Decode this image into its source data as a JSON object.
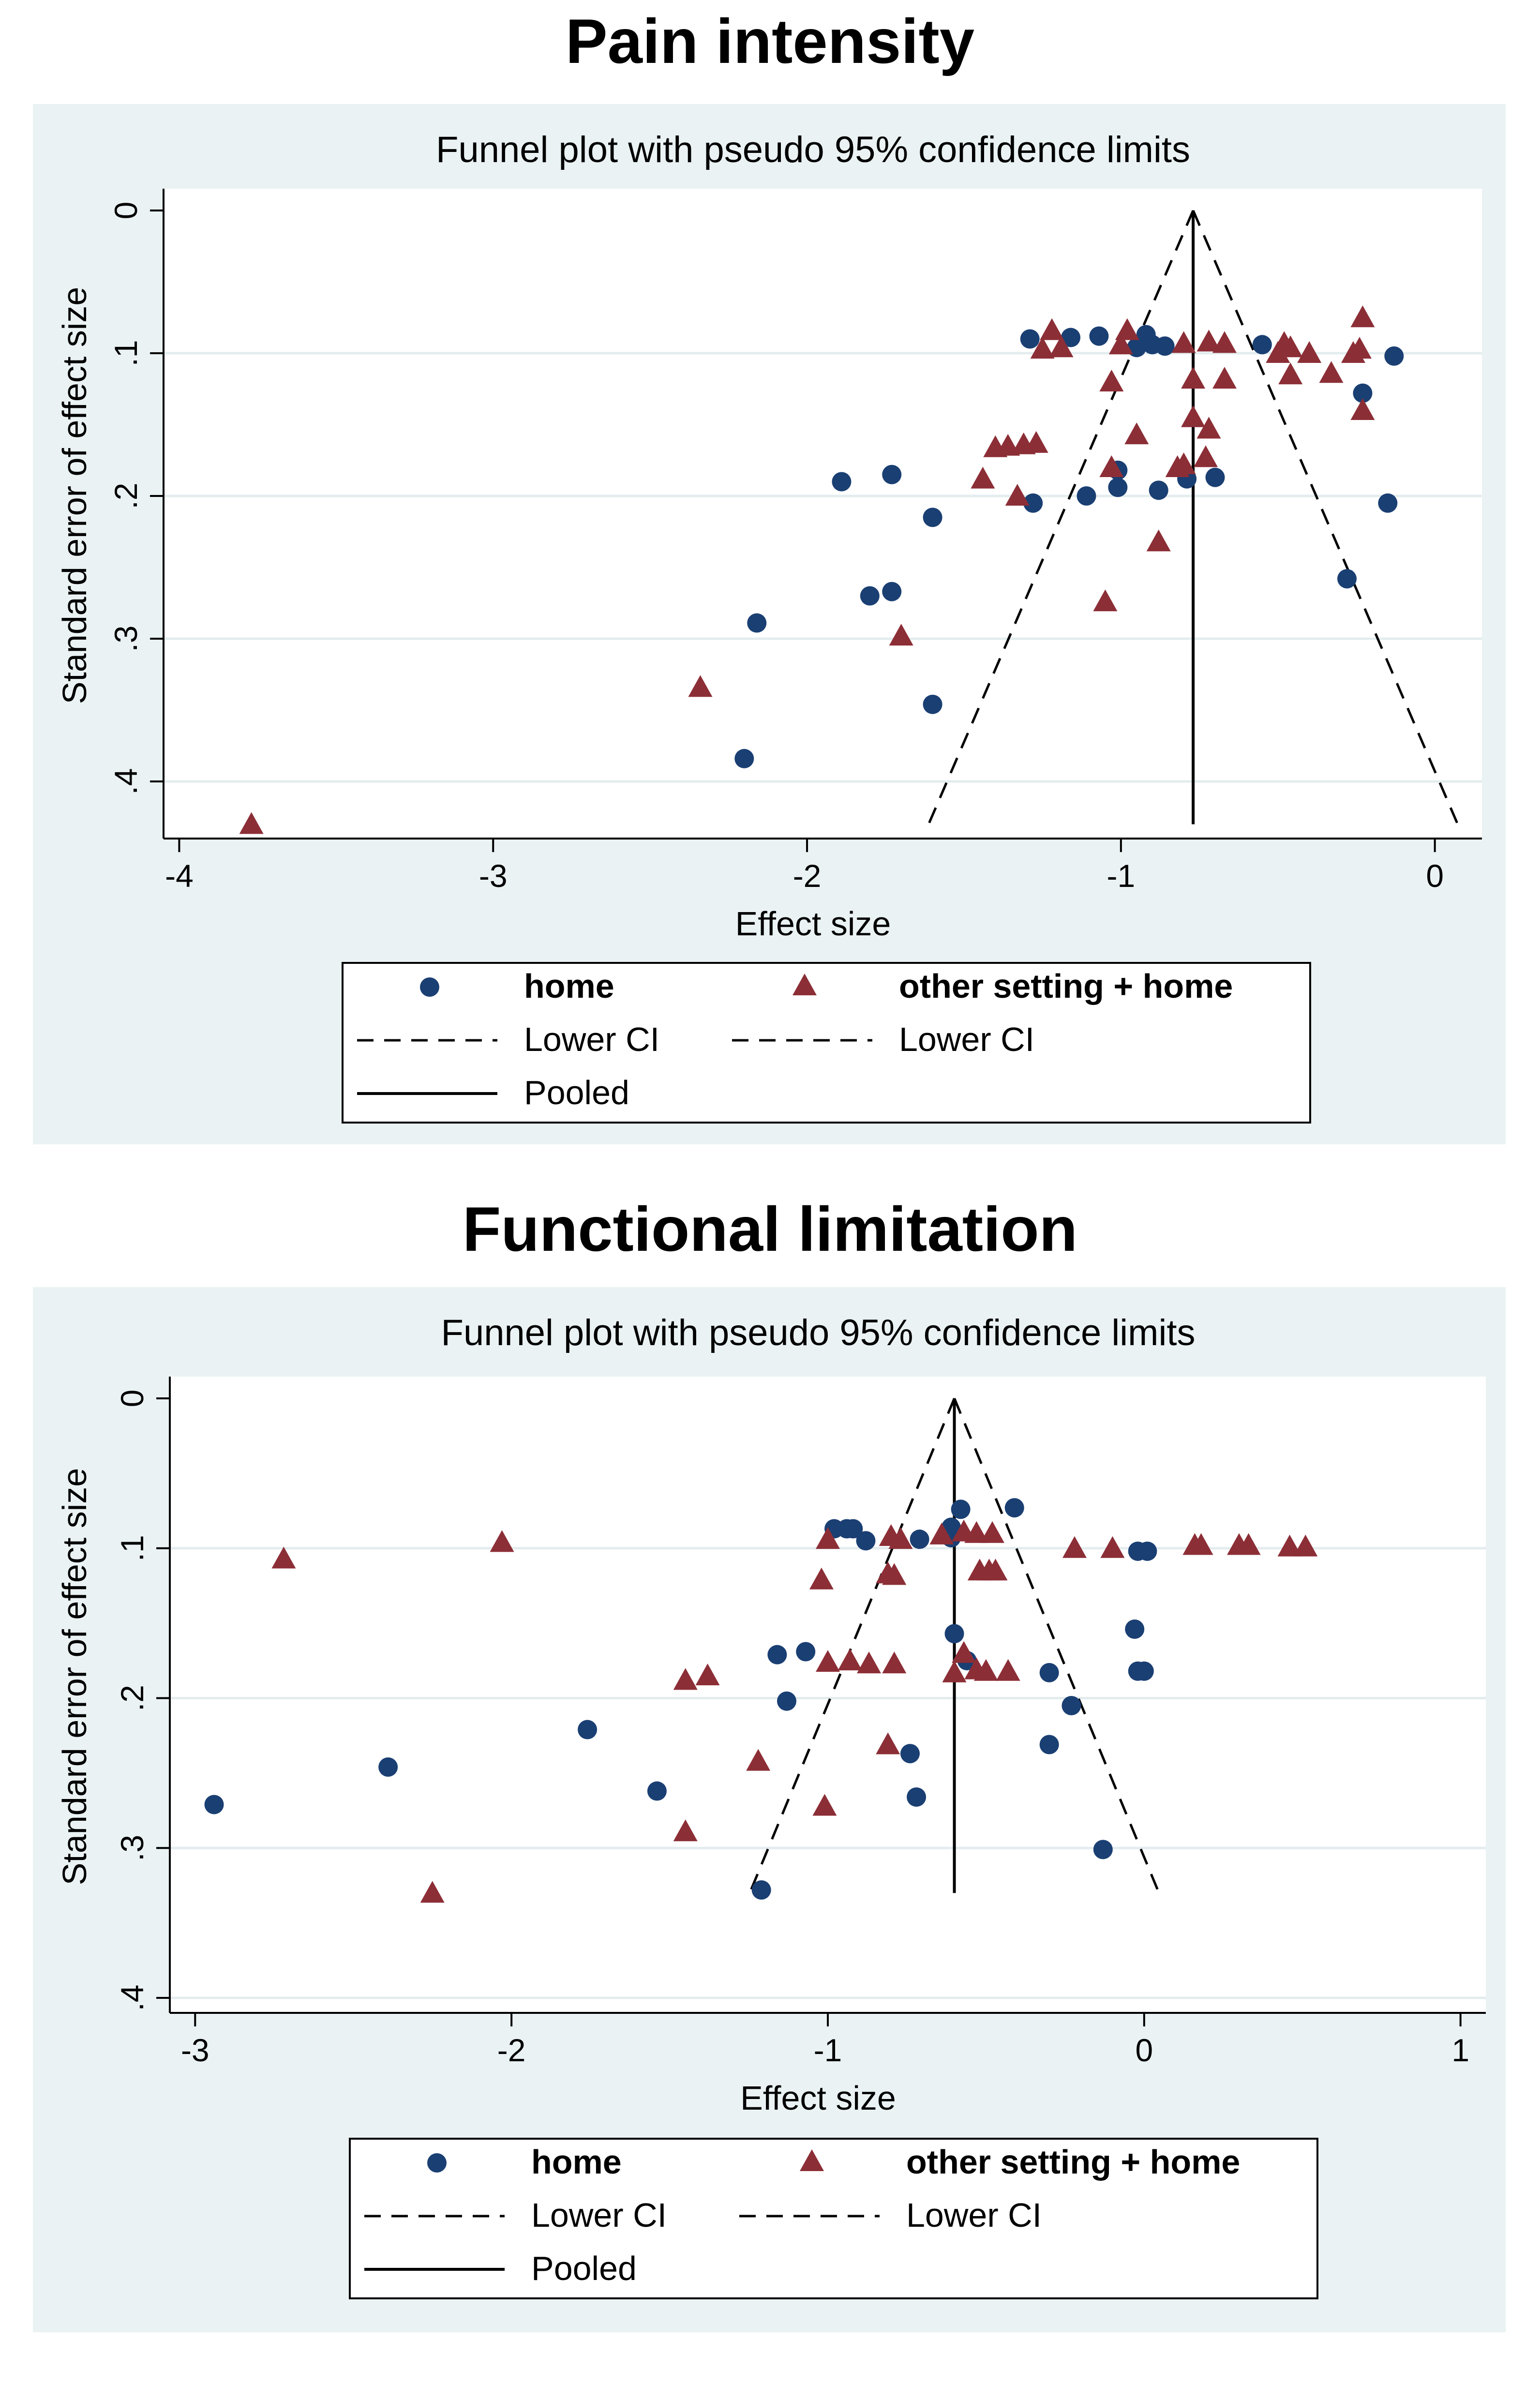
{
  "chart_data": [
    {
      "type": "scatter",
      "heading": "Pain intensity",
      "title": "Funnel plot with pseudo 95% confidence limits",
      "xlabel": "Effect size",
      "ylabel": "Standard error of effect size",
      "xlim": [
        -4.05,
        0.15
      ],
      "ylim": [
        0,
        0.44
      ],
      "y_reversed": true,
      "xticks": [
        -4,
        -3,
        -2,
        -1,
        0
      ],
      "yticks": [
        0,
        0.1,
        0.2,
        0.3,
        0.4
      ],
      "xtick_labels": [
        "-4",
        "-3",
        "-2",
        "-1",
        "0"
      ],
      "ytick_labels": [
        "0",
        ".1",
        ".2",
        ".3",
        ".4"
      ],
      "pooled": -0.77,
      "funnel": {
        "apex_se": 0,
        "max_se": 0.43
      },
      "legend": {
        "home": "home",
        "other": "other setting + home",
        "lower_ci_1": "Lower CI",
        "lower_ci_2": "Lower CI",
        "pooled": "Pooled"
      },
      "series": [
        {
          "name": "home",
          "marker": "circle",
          "color": "#1a3f73",
          "points": [
            [
              -1.29,
              0.09
            ],
            [
              -1.16,
              0.089
            ],
            [
              -1.07,
              0.088
            ],
            [
              -0.95,
              0.096
            ],
            [
              -0.92,
              0.087
            ],
            [
              -0.9,
              0.094
            ],
            [
              -0.86,
              0.095
            ],
            [
              -0.55,
              0.094
            ],
            [
              -0.13,
              0.102
            ],
            [
              -0.23,
              0.128
            ],
            [
              -1.89,
              0.19
            ],
            [
              -1.73,
              0.185
            ],
            [
              -1.6,
              0.215
            ],
            [
              -1.28,
              0.205
            ],
            [
              -1.11,
              0.2
            ],
            [
              -1.01,
              0.182
            ],
            [
              -1.01,
              0.194
            ],
            [
              -0.88,
              0.196
            ],
            [
              -0.79,
              0.188
            ],
            [
              -0.7,
              0.187
            ],
            [
              -0.15,
              0.205
            ],
            [
              -1.8,
              0.27
            ],
            [
              -1.73,
              0.267
            ],
            [
              -0.28,
              0.258
            ],
            [
              -2.16,
              0.289
            ],
            [
              -1.6,
              0.346
            ],
            [
              -2.2,
              0.384
            ]
          ]
        },
        {
          "name": "other setting + home",
          "marker": "triangle",
          "color": "#8c2e36",
          "points": [
            [
              -1.22,
              0.084
            ],
            [
              -1.25,
              0.097
            ],
            [
              -1.19,
              0.096
            ],
            [
              -1.0,
              0.094
            ],
            [
              -0.98,
              0.084
            ],
            [
              -0.8,
              0.093
            ],
            [
              -0.72,
              0.092
            ],
            [
              -0.67,
              0.093
            ],
            [
              -0.48,
              0.093
            ],
            [
              -0.46,
              0.096
            ],
            [
              -0.5,
              0.1
            ],
            [
              -0.4,
              0.1
            ],
            [
              -0.24,
              0.097
            ],
            [
              -0.26,
              0.1
            ],
            [
              -0.23,
              0.075
            ],
            [
              -1.03,
              0.12
            ],
            [
              -0.77,
              0.118
            ],
            [
              -0.67,
              0.118
            ],
            [
              -0.46,
              0.115
            ],
            [
              -0.33,
              0.114
            ],
            [
              -0.77,
              0.145
            ],
            [
              -0.72,
              0.153
            ],
            [
              -0.23,
              0.14
            ],
            [
              -0.95,
              0.157
            ],
            [
              -1.4,
              0.166
            ],
            [
              -1.36,
              0.165
            ],
            [
              -1.31,
              0.164
            ],
            [
              -1.27,
              0.163
            ],
            [
              -1.44,
              0.188
            ],
            [
              -1.33,
              0.2
            ],
            [
              -1.03,
              0.18
            ],
            [
              -0.82,
              0.18
            ],
            [
              -0.8,
              0.178
            ],
            [
              -0.73,
              0.173
            ],
            [
              -0.88,
              0.232
            ],
            [
              -1.05,
              0.274
            ],
            [
              -1.7,
              0.298
            ],
            [
              -2.34,
              0.334
            ],
            [
              -3.77,
              0.43
            ]
          ]
        }
      ]
    },
    {
      "type": "scatter",
      "heading": "Functional limitation",
      "title": "Funnel plot with pseudo 95% confidence limits",
      "xlabel": "Effect size",
      "ylabel": "Standard error of effect size",
      "xlim": [
        -3.08,
        1.08
      ],
      "ylim": [
        0,
        0.41
      ],
      "y_reversed": true,
      "xticks": [
        -3,
        -2,
        -1,
        0,
        1
      ],
      "yticks": [
        0,
        0.1,
        0.2,
        0.3,
        0.4
      ],
      "xtick_labels": [
        "-3",
        "-2",
        "-1",
        "0",
        "1"
      ],
      "ytick_labels": [
        "0",
        ".1",
        ".2",
        ".3",
        ".4"
      ],
      "pooled": -0.6,
      "funnel": {
        "apex_se": 0,
        "max_se": 0.33
      },
      "legend": {
        "home": "home",
        "other": "other setting + home",
        "lower_ci_1": "Lower CI",
        "lower_ci_2": "Lower CI",
        "pooled": "Pooled"
      },
      "series": [
        {
          "name": "home",
          "marker": "circle",
          "color": "#1a3f73",
          "points": [
            [
              -0.98,
              0.087
            ],
            [
              -0.94,
              0.087
            ],
            [
              -0.92,
              0.087
            ],
            [
              -0.88,
              0.095
            ],
            [
              -0.71,
              0.094
            ],
            [
              -0.61,
              0.086
            ],
            [
              -0.61,
              0.093
            ],
            [
              -0.58,
              0.074
            ],
            [
              -0.41,
              0.073
            ],
            [
              -0.02,
              0.102
            ],
            [
              0.01,
              0.102
            ],
            [
              -0.6,
              0.157
            ],
            [
              -0.56,
              0.175
            ],
            [
              -0.03,
              0.154
            ],
            [
              -0.02,
              0.182
            ],
            [
              0.0,
              0.182
            ],
            [
              -1.16,
              0.171
            ],
            [
              -1.07,
              0.169
            ],
            [
              -1.13,
              0.202
            ],
            [
              -0.3,
              0.183
            ],
            [
              -0.23,
              0.205
            ],
            [
              -0.3,
              0.231
            ],
            [
              -0.74,
              0.237
            ],
            [
              -1.76,
              0.221
            ],
            [
              -2.39,
              0.246
            ],
            [
              -1.54,
              0.262
            ],
            [
              -0.72,
              0.266
            ],
            [
              -2.94,
              0.271
            ],
            [
              -0.13,
              0.301
            ],
            [
              -1.21,
              0.328
            ]
          ]
        },
        {
          "name": "other setting + home",
          "marker": "triangle",
          "color": "#8c2e36",
          "points": [
            [
              -2.72,
              0.107
            ],
            [
              -2.03,
              0.096
            ],
            [
              -1.0,
              0.094
            ],
            [
              -1.02,
              0.121
            ],
            [
              -0.8,
              0.092
            ],
            [
              -0.77,
              0.094
            ],
            [
              -0.64,
              0.091
            ],
            [
              -0.57,
              0.089
            ],
            [
              -0.53,
              0.09
            ],
            [
              -0.48,
              0.09
            ],
            [
              -0.22,
              0.1
            ],
            [
              -0.1,
              0.1
            ],
            [
              0.16,
              0.098
            ],
            [
              0.18,
              0.098
            ],
            [
              0.3,
              0.098
            ],
            [
              0.33,
              0.098
            ],
            [
              0.46,
              0.099
            ],
            [
              0.51,
              0.099
            ],
            [
              -0.81,
              0.117
            ],
            [
              -0.79,
              0.118
            ],
            [
              -0.52,
              0.115
            ],
            [
              -0.49,
              0.115
            ],
            [
              -0.47,
              0.115
            ],
            [
              -1.0,
              0.176
            ],
            [
              -0.93,
              0.175
            ],
            [
              -0.87,
              0.177
            ],
            [
              -0.79,
              0.177
            ],
            [
              -0.6,
              0.183
            ],
            [
              -0.57,
              0.17
            ],
            [
              -0.53,
              0.181
            ],
            [
              -0.5,
              0.182
            ],
            [
              -0.43,
              0.182
            ],
            [
              -1.45,
              0.188
            ],
            [
              -1.38,
              0.185
            ],
            [
              -0.81,
              0.231
            ],
            [
              -1.22,
              0.242
            ],
            [
              -1.01,
              0.272
            ],
            [
              -1.45,
              0.289
            ],
            [
              -2.25,
              0.33
            ]
          ]
        }
      ]
    }
  ]
}
